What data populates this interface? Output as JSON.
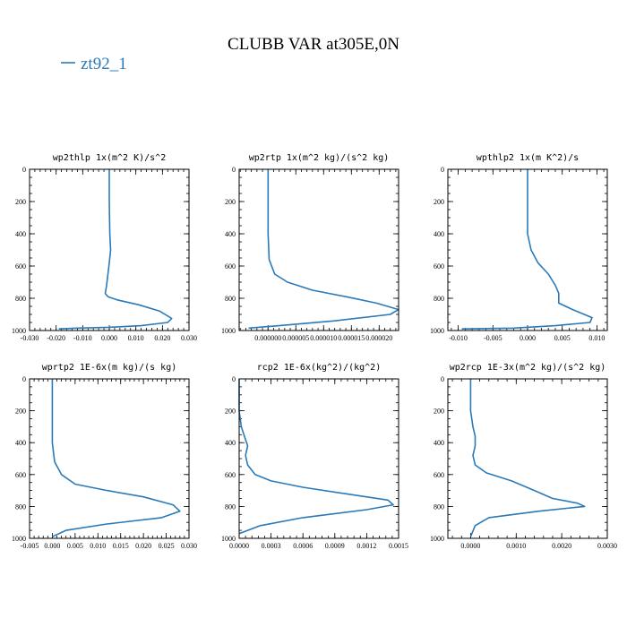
{
  "figure": {
    "title": "CLUBB VAR at305E,0N",
    "legend": {
      "label": "zt92_1",
      "color": "#2a7ab9"
    }
  },
  "chart_data": [
    {
      "type": "line",
      "title": "wp2thlp   1x(m^2 K)/s^2",
      "xlim": [
        -0.03,
        0.03
      ],
      "ylim": [
        1000,
        0
      ],
      "x_ticks": [
        "-0.030",
        "-0.020",
        "-0.010",
        "0.000",
        "0.010",
        "0.020",
        "0.030"
      ],
      "x_tick_values": [
        -0.03,
        -0.02,
        -0.01,
        0.0,
        0.01,
        0.02,
        0.03
      ],
      "y_ticks": [
        "0",
        "200",
        "400",
        "600",
        "800",
        "1000"
      ],
      "y_tick_values": [
        0,
        200,
        400,
        600,
        800,
        1000
      ],
      "series": [
        {
          "name": "zt92_1",
          "color": "#2a7ab9",
          "x": [
            0.0,
            0.0,
            0.0002,
            0.0005,
            0.0,
            -0.0005,
            -0.001,
            -0.0015,
            -0.0005,
            0.003,
            0.011,
            0.019,
            0.0235,
            0.022,
            0.012,
            0.0,
            -0.012,
            -0.019
          ],
          "y": [
            0,
            200,
            400,
            500,
            580,
            650,
            720,
            770,
            790,
            810,
            840,
            880,
            925,
            950,
            970,
            980,
            985,
            990
          ]
        }
      ]
    },
    {
      "type": "line",
      "title": "wp2rtp   1x(m^2 kg)/(s^2 kg)",
      "xlim": [
        -5.2e-06,
        2.35e-05
      ],
      "ylim": [
        1000,
        0
      ],
      "x_ticks": [
        "0.000000",
        "0.000005",
        "0.000010",
        "0.000015",
        "0.000020"
      ],
      "x_tick_values": [
        0.0,
        5e-06,
        1e-05,
        1.5e-05,
        2e-05
      ],
      "y_ticks": [
        "0",
        "200",
        "400",
        "600",
        "800",
        "1000"
      ],
      "y_tick_values": [
        0,
        200,
        400,
        600,
        800,
        1000
      ],
      "series": [
        {
          "name": "zt92_1",
          "color": "#2a7ab9",
          "x": [
            0.0,
            0.0,
            0.0,
            2e-07,
            1.2e-06,
            3.5e-06,
            8e-06,
            1.4e-05,
            1.95e-05,
            2.35e-05,
            2.2e-05,
            1.2e-05,
            2e-06,
            -3.5e-06
          ],
          "y": [
            0,
            200,
            400,
            560,
            650,
            700,
            750,
            790,
            830,
            870,
            900,
            940,
            970,
            985
          ]
        }
      ]
    },
    {
      "type": "line",
      "title": "wpthlp2   1x(m K^2)/s",
      "xlim": [
        -0.0115,
        0.0115
      ],
      "ylim": [
        1000,
        0
      ],
      "x_ticks": [
        "-0.010",
        "-0.005",
        "0.000",
        "0.005",
        "0.010"
      ],
      "x_tick_values": [
        -0.01,
        -0.005,
        0.0,
        0.005,
        0.01
      ],
      "y_ticks": [
        "0",
        "200",
        "400",
        "600",
        "800",
        "1000"
      ],
      "y_tick_values": [
        0,
        200,
        400,
        600,
        800,
        1000
      ],
      "series": [
        {
          "name": "zt92_1",
          "color": "#2a7ab9",
          "x": [
            0.0,
            0.0,
            0.0,
            0.0005,
            0.0015,
            0.003,
            0.004,
            0.0045,
            0.0045,
            0.0065,
            0.0093,
            0.009,
            0.004,
            -0.002,
            -0.0095
          ],
          "y": [
            0,
            200,
            400,
            500,
            580,
            650,
            720,
            770,
            830,
            870,
            920,
            950,
            970,
            985,
            990
          ]
        }
      ]
    },
    {
      "type": "line",
      "title": "wprtp2   1E-6x(m kg)/(s kg)",
      "xlim": [
        -0.005,
        0.03
      ],
      "ylim": [
        1000,
        0
      ],
      "x_ticks": [
        "-0.005",
        "0.000",
        "0.005",
        "0.010",
        "0.015",
        "0.020",
        "0.025",
        "0.030"
      ],
      "x_tick_values": [
        -0.005,
        0.0,
        0.005,
        0.01,
        0.015,
        0.02,
        0.025,
        0.03
      ],
      "y_ticks": [
        "0",
        "200",
        "400",
        "600",
        "800",
        "1000"
      ],
      "y_tick_values": [
        0,
        200,
        400,
        600,
        800,
        1000
      ],
      "series": [
        {
          "name": "zt92_1",
          "color": "#2a7ab9",
          "x": [
            0.0,
            0.0,
            0.0,
            0.0005,
            0.002,
            0.005,
            0.012,
            0.02,
            0.0265,
            0.028,
            0.024,
            0.012,
            0.003,
            0.0
          ],
          "y": [
            0,
            200,
            400,
            520,
            600,
            660,
            700,
            740,
            790,
            830,
            870,
            910,
            950,
            990
          ]
        }
      ]
    },
    {
      "type": "line",
      "title": "rcp2   1E-6x(kg^2)/(kg^2)",
      "xlim": [
        0.0,
        0.0015
      ],
      "ylim": [
        1000,
        0
      ],
      "x_ticks": [
        "0.0000",
        "0.0003",
        "0.0006",
        "0.0009",
        "0.0012",
        "0.0015"
      ],
      "x_tick_values": [
        0.0,
        0.0003,
        0.0006,
        0.0009,
        0.0012,
        0.0015
      ],
      "y_ticks": [
        "0",
        "200",
        "400",
        "600",
        "800",
        "1000"
      ],
      "y_tick_values": [
        0,
        200,
        400,
        600,
        800,
        1000
      ],
      "series": [
        {
          "name": "zt92_1",
          "color": "#2a7ab9",
          "x": [
            0.0,
            0.0,
            2e-05,
            5e-05,
            8e-05,
            6e-05,
            8e-05,
            0.00015,
            0.0003,
            0.0006,
            0.001,
            0.0014,
            0.00145,
            0.0012,
            0.0006,
            0.0002,
            0.0
          ],
          "y": [
            0,
            200,
            300,
            360,
            420,
            480,
            540,
            600,
            640,
            680,
            720,
            760,
            790,
            820,
            870,
            920,
            970
          ]
        }
      ]
    },
    {
      "type": "line",
      "title": "wp2rcp   1E-3x(m^2 kg)/(s^2 kg)",
      "xlim": [
        -0.0005,
        0.003
      ],
      "ylim": [
        1000,
        0
      ],
      "x_ticks": [
        "0.0000",
        "0.0010",
        "0.0020",
        "0.0030"
      ],
      "x_tick_values": [
        0.0,
        0.001,
        0.002,
        0.003
      ],
      "y_ticks": [
        "0",
        "200",
        "400",
        "600",
        "800",
        "1000"
      ],
      "y_tick_values": [
        0,
        200,
        400,
        600,
        800,
        1000
      ],
      "series": [
        {
          "name": "zt92_1",
          "color": "#2a7ab9",
          "x": [
            0.0,
            0.0,
            5e-05,
            0.0001,
            0.0001,
            5e-05,
            0.0001,
            0.00035,
            0.0009,
            0.0014,
            0.0018,
            0.00235,
            0.0025,
            0.0015,
            0.0004,
            0.0001,
            0.0
          ],
          "y": [
            0,
            200,
            300,
            360,
            420,
            480,
            540,
            590,
            640,
            700,
            750,
            780,
            800,
            830,
            870,
            920,
            990
          ]
        }
      ]
    }
  ]
}
